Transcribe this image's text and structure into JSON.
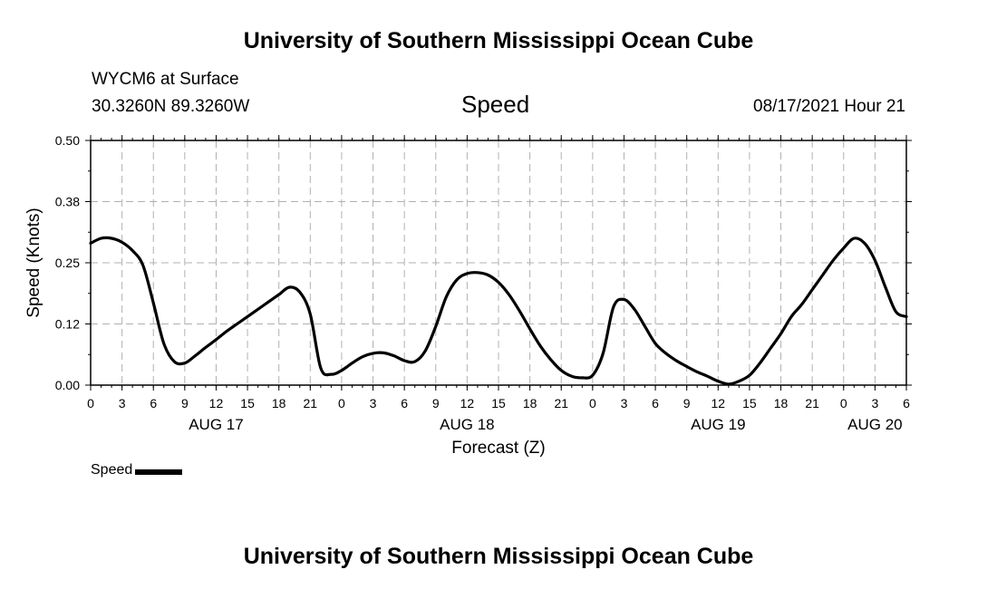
{
  "header": {
    "title": "University of Southern Mississippi Ocean Cube",
    "station": "WYCM6 at Surface",
    "coords": "30.3260N  89.3260W",
    "variable": "Speed",
    "datetime": "08/17/2021 Hour 21"
  },
  "footer": {
    "title": "University of Southern Mississippi Ocean Cube"
  },
  "legend": {
    "label": "Speed"
  },
  "chart_data": {
    "type": "line",
    "title": "Speed",
    "xlabel": "Forecast (Z)",
    "ylabel": "Speed (Knots)",
    "xlim": [
      0,
      78
    ],
    "ylim": [
      0,
      0.5
    ],
    "grid": true,
    "legend_position": "bottom-left",
    "y_ticks": [
      {
        "value": 0.0,
        "label": "0.00"
      },
      {
        "value": 0.125,
        "label": "0.12"
      },
      {
        "value": 0.25,
        "label": "0.25"
      },
      {
        "value": 0.375,
        "label": "0.38"
      },
      {
        "value": 0.5,
        "label": "0.50"
      }
    ],
    "x_ticks": [
      {
        "value": 0,
        "label": "0"
      },
      {
        "value": 3,
        "label": "3"
      },
      {
        "value": 6,
        "label": "6"
      },
      {
        "value": 9,
        "label": "9"
      },
      {
        "value": 12,
        "label": "12"
      },
      {
        "value": 15,
        "label": "15"
      },
      {
        "value": 18,
        "label": "18"
      },
      {
        "value": 21,
        "label": "21"
      },
      {
        "value": 24,
        "label": "0"
      },
      {
        "value": 27,
        "label": "3"
      },
      {
        "value": 30,
        "label": "6"
      },
      {
        "value": 33,
        "label": "9"
      },
      {
        "value": 36,
        "label": "12"
      },
      {
        "value": 39,
        "label": "15"
      },
      {
        "value": 42,
        "label": "18"
      },
      {
        "value": 45,
        "label": "21"
      },
      {
        "value": 48,
        "label": "0"
      },
      {
        "value": 51,
        "label": "3"
      },
      {
        "value": 54,
        "label": "6"
      },
      {
        "value": 57,
        "label": "9"
      },
      {
        "value": 60,
        "label": "12"
      },
      {
        "value": 63,
        "label": "15"
      },
      {
        "value": 66,
        "label": "18"
      },
      {
        "value": 69,
        "label": "21"
      },
      {
        "value": 72,
        "label": "0"
      },
      {
        "value": 75,
        "label": "3"
      },
      {
        "value": 78,
        "label": "6"
      }
    ],
    "day_labels": [
      {
        "value": 12,
        "label": "AUG 17"
      },
      {
        "value": 36,
        "label": "AUG 18"
      },
      {
        "value": 60,
        "label": "AUG 19"
      },
      {
        "value": 75,
        "label": "AUG 20"
      }
    ],
    "series": [
      {
        "name": "Speed",
        "color": "#000000",
        "x": [
          0,
          1,
          2,
          3,
          4,
          5,
          6,
          7,
          8,
          9,
          10,
          11,
          12,
          13,
          14,
          15,
          16,
          17,
          18,
          19,
          20,
          21,
          22,
          23,
          24,
          25,
          26,
          27,
          28,
          29,
          30,
          31,
          32,
          33,
          34,
          35,
          36,
          37,
          38,
          39,
          40,
          41,
          42,
          43,
          44,
          45,
          46,
          47,
          48,
          49,
          50,
          51,
          52,
          53,
          54,
          55,
          56,
          57,
          58,
          59,
          60,
          61,
          62,
          63,
          64,
          65,
          66,
          67,
          68,
          69,
          70,
          71,
          72,
          73,
          74,
          75,
          76,
          77,
          78
        ],
        "values": [
          0.29,
          0.3,
          0.3,
          0.292,
          0.275,
          0.245,
          0.168,
          0.085,
          0.048,
          0.045,
          0.06,
          0.077,
          0.093,
          0.11,
          0.125,
          0.14,
          0.155,
          0.17,
          0.185,
          0.2,
          0.19,
          0.145,
          0.035,
          0.022,
          0.03,
          0.045,
          0.058,
          0.065,
          0.066,
          0.06,
          0.05,
          0.048,
          0.07,
          0.12,
          0.18,
          0.215,
          0.228,
          0.23,
          0.225,
          0.21,
          0.185,
          0.152,
          0.115,
          0.08,
          0.052,
          0.03,
          0.018,
          0.015,
          0.02,
          0.065,
          0.16,
          0.175,
          0.155,
          0.12,
          0.085,
          0.065,
          0.05,
          0.038,
          0.027,
          0.018,
          0.008,
          0.002,
          0.008,
          0.02,
          0.045,
          0.075,
          0.105,
          0.14,
          0.165,
          0.195,
          0.225,
          0.255,
          0.28,
          0.3,
          0.29,
          0.255,
          0.2,
          0.15,
          0.14
        ]
      }
    ]
  }
}
